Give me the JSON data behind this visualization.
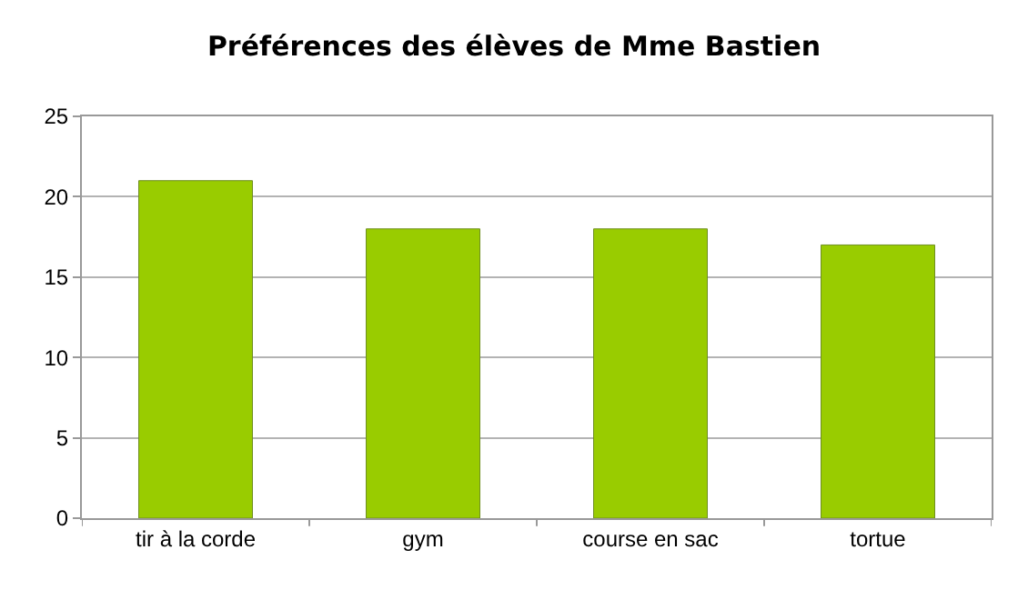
{
  "chart_data": {
    "type": "bar",
    "title": "Préférences des élèves de Mme Bastien",
    "categories": [
      "tir à la corde",
      "gym",
      "course en sac",
      "tortue"
    ],
    "values": [
      21,
      18,
      18,
      17
    ],
    "color": "#99cc00",
    "ylim": [
      0,
      25
    ],
    "yticks": [
      0,
      5,
      10,
      15,
      20,
      25
    ],
    "grid": "y",
    "legend": false
  }
}
